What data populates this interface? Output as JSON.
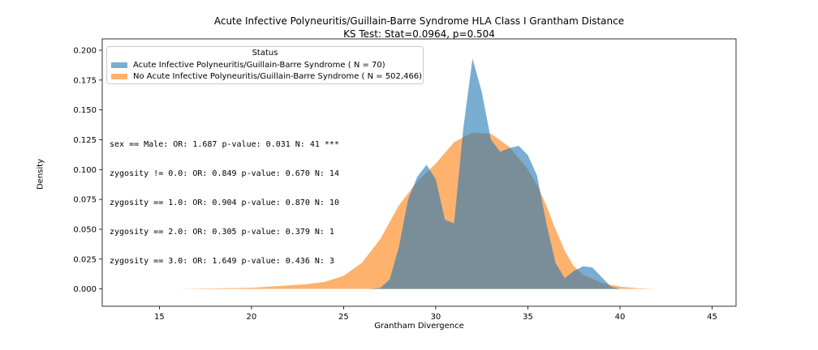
{
  "chart_data": {
    "type": "area",
    "title": "Acute Infective Polyneuritis/Guillain-Barre Syndrome HLA Class I Grantham Distance",
    "subtitle": "KS Test: Stat=0.0964, p=0.504",
    "xlabel": "Grantham Divergence",
    "ylabel": "Density",
    "xlim": [
      11.9,
      46.3
    ],
    "ylim": [
      -0.0145,
      0.2095
    ],
    "xticks": [
      15,
      20,
      25,
      30,
      35,
      40,
      45
    ],
    "yticks": [
      "0.000",
      "0.025",
      "0.050",
      "0.075",
      "0.100",
      "0.125",
      "0.150",
      "0.175",
      "0.200"
    ],
    "grid": false,
    "legend": {
      "title": "Status",
      "placement": "top-left"
    },
    "series": [
      {
        "name": "Acute Infective Polyneuritis/Guillain-Barre Syndrome ( N = 70)",
        "color": "#1f77b4",
        "x": [
          26.4,
          27.0,
          27.5,
          28.0,
          28.5,
          29.0,
          29.5,
          30.0,
          30.5,
          31.0,
          31.5,
          32.0,
          32.5,
          33.0,
          33.5,
          34.0,
          34.5,
          35.0,
          35.5,
          36.0,
          36.5,
          37.0,
          37.5,
          38.0,
          38.5,
          39.0,
          39.5,
          40.0,
          40.3
        ],
        "y": [
          0.0,
          0.001,
          0.008,
          0.035,
          0.075,
          0.094,
          0.104,
          0.092,
          0.058,
          0.055,
          0.135,
          0.193,
          0.165,
          0.125,
          0.115,
          0.118,
          0.12,
          0.112,
          0.095,
          0.055,
          0.022,
          0.009,
          0.015,
          0.019,
          0.018,
          0.01,
          0.002,
          0.0,
          0.0
        ]
      },
      {
        "name": "No Acute Infective Polyneuritis/Guillain-Barre Syndrome ( N = 502,466)",
        "color": "#ff7f0e",
        "x": [
          13.4,
          16.0,
          18.0,
          20.0,
          21.0,
          22.0,
          23.0,
          24.0,
          25.0,
          26.0,
          27.0,
          28.0,
          29.0,
          30.0,
          31.0,
          32.0,
          33.0,
          34.0,
          35.0,
          35.5,
          36.0,
          36.5,
          37.0,
          37.5,
          38.0,
          39.0,
          40.0,
          41.0,
          42.0,
          44.8
        ],
        "y": [
          0.0,
          0.0,
          0.0005,
          0.001,
          0.002,
          0.003,
          0.004,
          0.006,
          0.011,
          0.022,
          0.042,
          0.07,
          0.09,
          0.105,
          0.123,
          0.131,
          0.13,
          0.119,
          0.1,
          0.087,
          0.07,
          0.05,
          0.032,
          0.019,
          0.012,
          0.005,
          0.002,
          0.0005,
          0.0,
          0.0
        ]
      }
    ],
    "annotations": [
      "sex == Male: OR: 1.687 p-value: 0.031 N: 41 ***",
      "zygosity != 0.0: OR: 0.849 p-value: 0.670 N: 14",
      "zygosity == 1.0: OR: 0.904 p-value: 0.870 N: 10",
      "zygosity == 2.0: OR: 0.305 p-value: 0.379 N: 1",
      "zygosity == 3.0: OR: 1.649 p-value: 0.436 N: 3"
    ]
  }
}
